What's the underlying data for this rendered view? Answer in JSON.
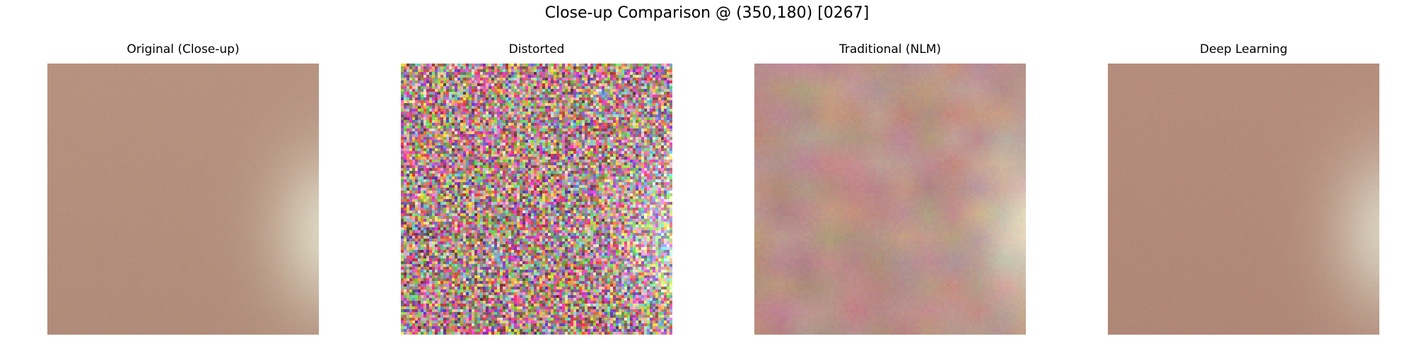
{
  "figure": {
    "title": "Close-up Comparison @ (350,180) [0267]"
  },
  "panels": [
    {
      "title": "Original (Close-up)",
      "kind": "clean-smooth",
      "base_color": "#b38f7d",
      "highlight_color": "#ddd8c3"
    },
    {
      "title": "Distorted",
      "kind": "heavy-color-noise",
      "base_color": "#b08a86",
      "highlight_color": "#d6cfd0"
    },
    {
      "title": "Traditional (NLM)",
      "kind": "blotchy-denoised",
      "base_color": "#b89087",
      "highlight_color": "#dcd9c5"
    },
    {
      "title": "Deep Learning",
      "kind": "clean-smooth",
      "base_color": "#b28a7a",
      "highlight_color": "#d9d2bf"
    }
  ]
}
